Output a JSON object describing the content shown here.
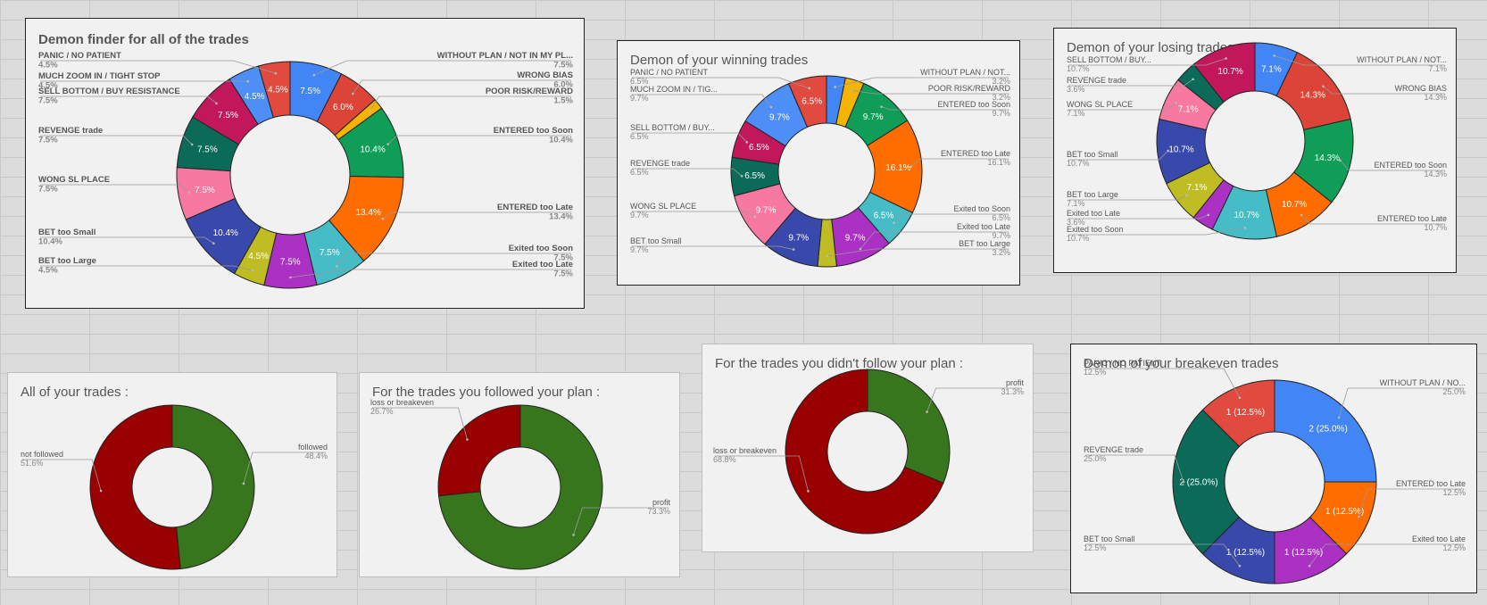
{
  "chart_data": [
    {
      "type": "pie",
      "donut": true,
      "title": "Demon finder for all of the trades",
      "slices": [
        {
          "label": "WITHOUT PLAN / NOT IN MY PL...",
          "value": 7.5,
          "pct_label": "7.5%",
          "slice_label": "7.5%",
          "color": "#4285f4"
        },
        {
          "label": "WRONG BIAS",
          "value": 6.0,
          "pct_label": "6.0%",
          "slice_label": "6.0%",
          "color": "#db4437"
        },
        {
          "label": "POOR RISK/REWARD",
          "value": 1.5,
          "pct_label": "1.5%",
          "slice_label": "",
          "color": "#f4b400"
        },
        {
          "label": "ENTERED too Soon",
          "value": 10.4,
          "pct_label": "10.4%",
          "slice_label": "10.4%",
          "color": "#0f9d58"
        },
        {
          "label": "ENTERED too Late",
          "value": 13.4,
          "pct_label": "13.4%",
          "slice_label": "13.4%",
          "color": "#ff6d01"
        },
        {
          "label": "Exited too Soon",
          "value": 7.5,
          "pct_label": "7.5%",
          "slice_label": "7.5%",
          "color": "#46bdc6"
        },
        {
          "label": "Exited too Late",
          "value": 7.5,
          "pct_label": "7.5%",
          "slice_label": "7.5%",
          "color": "#ab30c4"
        },
        {
          "label": "BET too Large",
          "value": 4.5,
          "pct_label": "4.5%",
          "slice_label": "4.5%",
          "color": "#bfbd23"
        },
        {
          "label": "BET too Small",
          "value": 10.4,
          "pct_label": "10.4%",
          "slice_label": "10.4%",
          "color": "#3949ab"
        },
        {
          "label": "WONG SL PLACE",
          "value": 7.5,
          "pct_label": "7.5%",
          "slice_label": "7.5%",
          "color": "#f778a1"
        },
        {
          "label": "REVENGE trade",
          "value": 7.5,
          "pct_label": "7.5%",
          "slice_label": "7.5%",
          "color": "#0b6a58"
        },
        {
          "label": "SELL BOTTOM / BUY RESISTANCE",
          "value": 7.5,
          "pct_label": "7.5%",
          "slice_label": "7.5%",
          "color": "#c2185b"
        },
        {
          "label": "MUCH ZOOM IN / TIGHT STOP",
          "value": 4.5,
          "pct_label": "4.5%",
          "slice_label": "4.5%",
          "color": "#4d8ef7"
        },
        {
          "label": "PANIC / NO PATIENT",
          "value": 4.5,
          "pct_label": "4.5%",
          "slice_label": "4.5%",
          "color": "#e04a3f"
        }
      ]
    },
    {
      "type": "pie",
      "donut": true,
      "title": "Demon of your winning trades",
      "slices": [
        {
          "label": "WITHOUT PLAN / NOT...",
          "value": 3.2,
          "pct_label": "3.2%",
          "slice_label": "",
          "color": "#4285f4"
        },
        {
          "label": "POOR RISK/REWARD",
          "value": 3.2,
          "pct_label": "3.2%",
          "slice_label": "",
          "color": "#f4b400"
        },
        {
          "label": "ENTERED too Soon",
          "value": 9.7,
          "pct_label": "9.7%",
          "slice_label": "9.7%",
          "color": "#0f9d58"
        },
        {
          "label": "ENTERED too Late",
          "value": 16.1,
          "pct_label": "16.1%",
          "slice_label": "16.1%",
          "color": "#ff6d01"
        },
        {
          "label": "Exited too Soon",
          "value": 6.5,
          "pct_label": "6.5%",
          "slice_label": "6.5%",
          "color": "#46bdc6"
        },
        {
          "label": "Exited too Late",
          "value": 9.7,
          "pct_label": "9.7%",
          "slice_label": "9.7%",
          "color": "#ab30c4"
        },
        {
          "label": "BET too Large",
          "value": 3.2,
          "pct_label": "3.2%",
          "slice_label": "",
          "color": "#bfbd23"
        },
        {
          "label": "BET too Small",
          "value": 9.7,
          "pct_label": "9.7%",
          "slice_label": "9.7%",
          "color": "#3949ab"
        },
        {
          "label": "WONG SL PLACE",
          "value": 9.7,
          "pct_label": "9.7%",
          "slice_label": "9.7%",
          "color": "#f778a1"
        },
        {
          "label": "REVENGE trade",
          "value": 6.5,
          "pct_label": "6.5%",
          "slice_label": "6.5%",
          "color": "#0b6a58"
        },
        {
          "label": "SELL BOTTOM / BUY...",
          "value": 6.5,
          "pct_label": "6.5%",
          "slice_label": "6.5%",
          "color": "#c2185b"
        },
        {
          "label": "MUCH ZOOM IN / TIG...",
          "value": 9.7,
          "pct_label": "9.7%",
          "slice_label": "9.7%",
          "color": "#4d8ef7"
        },
        {
          "label": "PANIC / NO PATIENT",
          "value": 6.5,
          "pct_label": "6.5%",
          "slice_label": "6.5%",
          "color": "#e04a3f"
        }
      ]
    },
    {
      "type": "pie",
      "donut": true,
      "title": "Demon of your losing trades",
      "slices": [
        {
          "label": "WITHOUT PLAN / NOT...",
          "value": 7.1,
          "pct_label": "7.1%",
          "slice_label": "7.1%",
          "color": "#4285f4"
        },
        {
          "label": "WRONG BIAS",
          "value": 14.3,
          "pct_label": "14.3%",
          "slice_label": "14.3%",
          "color": "#db4437"
        },
        {
          "label": "ENTERED too Soon",
          "value": 14.3,
          "pct_label": "14.3%",
          "slice_label": "14.3%",
          "color": "#0f9d58"
        },
        {
          "label": "ENTERED too Late",
          "value": 10.7,
          "pct_label": "10.7%",
          "slice_label": "10.7%",
          "color": "#ff6d01"
        },
        {
          "label": "Exited too Soon",
          "value": 10.7,
          "pct_label": "10.7%",
          "slice_label": "10.7%",
          "color": "#46bdc6"
        },
        {
          "label": "Exited too Late",
          "value": 3.6,
          "pct_label": "3.6%",
          "slice_label": "",
          "color": "#ab30c4"
        },
        {
          "label": "BET too Large",
          "value": 7.1,
          "pct_label": "7.1%",
          "slice_label": "7.1%",
          "color": "#bfbd23"
        },
        {
          "label": "BET too Small",
          "value": 10.7,
          "pct_label": "10.7%",
          "slice_label": "10.7%",
          "color": "#3949ab"
        },
        {
          "label": "WONG SL PLACE",
          "value": 7.1,
          "pct_label": "7.1%",
          "slice_label": "7.1%",
          "color": "#f778a1"
        },
        {
          "label": "REVENGE trade",
          "value": 3.6,
          "pct_label": "3.6%",
          "slice_label": "",
          "color": "#0b6a58"
        },
        {
          "label": "SELL BOTTOM / BUY...",
          "value": 10.7,
          "pct_label": "10.7%",
          "slice_label": "10.7%",
          "color": "#c2185b"
        }
      ]
    },
    {
      "type": "pie",
      "donut": true,
      "title": "All of your trades :",
      "slices": [
        {
          "label": "followed",
          "value": 48.4,
          "pct_label": "48.4%",
          "slice_label": "",
          "color": "#38761d"
        },
        {
          "label": "not followed",
          "value": 51.6,
          "pct_label": "51.6%",
          "slice_label": "",
          "color": "#990000"
        }
      ]
    },
    {
      "type": "pie",
      "donut": true,
      "title": "For the trades you followed your plan :",
      "slices": [
        {
          "label": "profit",
          "value": 73.3,
          "pct_label": "73.3%",
          "slice_label": "",
          "color": "#38761d"
        },
        {
          "label": "loss or breakeven",
          "value": 26.7,
          "pct_label": "26.7%",
          "slice_label": "",
          "color": "#990000"
        }
      ]
    },
    {
      "type": "pie",
      "donut": true,
      "title": "For the trades you didn't follow your plan :",
      "slices": [
        {
          "label": "profit",
          "value": 31.3,
          "pct_label": "31.3%",
          "slice_label": "",
          "color": "#38761d"
        },
        {
          "label": "loss or breakeven",
          "value": 68.8,
          "pct_label": "68.8%",
          "slice_label": "",
          "color": "#990000"
        }
      ]
    },
    {
      "type": "pie",
      "donut": true,
      "title": "Demon of your breakeven trades",
      "slices": [
        {
          "label": "WITHOUT PLAN / NO...",
          "value": 25.0,
          "pct_label": "25.0%",
          "slice_label": "2 (25.0%)",
          "color": "#4285f4"
        },
        {
          "label": "ENTERED too Late",
          "value": 12.5,
          "pct_label": "12.5%",
          "slice_label": "1 (12.5%)",
          "color": "#ff6d01"
        },
        {
          "label": "Exited too Late",
          "value": 12.5,
          "pct_label": "12.5%",
          "slice_label": "1 (12.5%)",
          "color": "#ab30c4"
        },
        {
          "label": "BET too Small",
          "value": 12.5,
          "pct_label": "12.5%",
          "slice_label": "1 (12.5%)",
          "color": "#3949ab"
        },
        {
          "label": "REVENGE trade",
          "value": 25.0,
          "pct_label": "25.0%",
          "slice_label": "2 (25.0%)",
          "color": "#0b6a58"
        },
        {
          "label": "PANIC / NO PATIENT",
          "value": 12.5,
          "pct_label": "12.5%",
          "slice_label": "1 (12.5%)",
          "color": "#e04a3f"
        }
      ]
    }
  ]
}
